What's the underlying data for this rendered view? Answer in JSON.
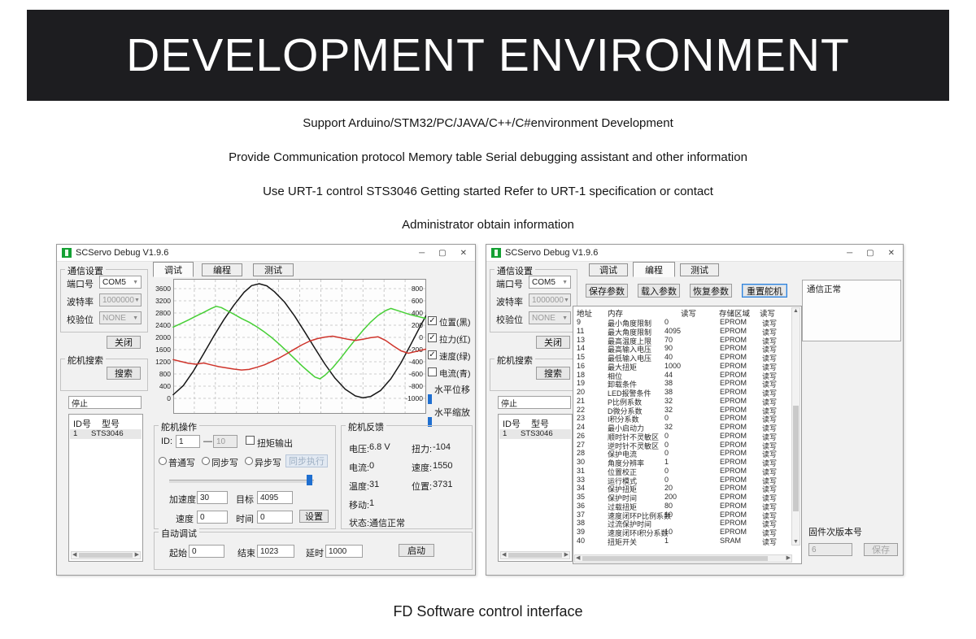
{
  "banner": {
    "title": "DEVELOPMENT ENVIRONMENT"
  },
  "intro_lines": [
    "Support Arduino/STM32/PC/JAVA/C++/C#environment Development",
    "Provide Communication protocol Memory table Serial debugging assistant and other information",
    "Use URT-1 control STS3046 Getting started Refer to URT-1 specification or contact",
    "Administrator obtain information"
  ],
  "caption": "FD Software control interface",
  "window_controls": {
    "minimize": "─",
    "maximize": "▢",
    "close": "✕"
  },
  "left_window": {
    "title": "SCServo Debug V1.9.6",
    "sidebar": {
      "comm_group": "通信设置",
      "port_label": "端口号",
      "port_value": "COM5",
      "baud_label": "波特率",
      "baud_value": "1000000",
      "parity_label": "校验位",
      "parity_value": "NONE",
      "close_button": "关闭",
      "search_group": "舵机搜索",
      "search_button": "搜索",
      "stop_field": "停止",
      "list_headers": [
        "ID号",
        "型号"
      ],
      "list_row": [
        "1",
        "STS3046"
      ]
    },
    "tabs": [
      {
        "label": "调试",
        "active": true
      },
      {
        "label": "编程",
        "active": false
      },
      {
        "label": "测试",
        "active": false
      }
    ],
    "chart": {
      "type": "line",
      "y_left": {
        "ticks": [
          3600,
          3200,
          2800,
          2400,
          2000,
          1600,
          1200,
          800,
          400,
          0
        ],
        "min": 0,
        "max": 3600
      },
      "y_right": {
        "ticks": [
          800,
          600,
          400,
          200,
          0,
          -200,
          -400,
          -600,
          -800,
          -1000
        ]
      },
      "grid_cols": 12,
      "series": [
        {
          "name": "位置",
          "color": "#161616",
          "points": [
            [
              0,
              120
            ],
            [
              0.04,
              420
            ],
            [
              0.08,
              900
            ],
            [
              0.12,
              1460
            ],
            [
              0.16,
              2040
            ],
            [
              0.2,
              2580
            ],
            [
              0.24,
              3060
            ],
            [
              0.28,
              3480
            ],
            [
              0.31,
              3700
            ],
            [
              0.34,
              3760
            ],
            [
              0.37,
              3690
            ],
            [
              0.4,
              3500
            ],
            [
              0.44,
              3160
            ],
            [
              0.48,
              2700
            ],
            [
              0.52,
              2180
            ],
            [
              0.56,
              1640
            ],
            [
              0.6,
              1120
            ],
            [
              0.64,
              660
            ],
            [
              0.68,
              300
            ],
            [
              0.72,
              80
            ],
            [
              0.75,
              20
            ],
            [
              0.78,
              60
            ],
            [
              0.82,
              260
            ],
            [
              0.86,
              640
            ],
            [
              0.9,
              1160
            ],
            [
              0.94,
              1780
            ],
            [
              0.98,
              2420
            ],
            [
              1,
              2720
            ]
          ]
        },
        {
          "name": "速度",
          "color": "#46cf35",
          "points": [
            [
              0,
              2340
            ],
            [
              0.03,
              2450
            ],
            [
              0.06,
              2570
            ],
            [
              0.09,
              2700
            ],
            [
              0.12,
              2820
            ],
            [
              0.15,
              2950
            ],
            [
              0.17,
              3020
            ],
            [
              0.19,
              2980
            ],
            [
              0.21,
              2890
            ],
            [
              0.24,
              2760
            ],
            [
              0.27,
              2620
            ],
            [
              0.3,
              2500
            ],
            [
              0.33,
              2350
            ],
            [
              0.36,
              2180
            ],
            [
              0.39,
              1990
            ],
            [
              0.42,
              1770
            ],
            [
              0.45,
              1540
            ],
            [
              0.48,
              1300
            ],
            [
              0.51,
              1060
            ],
            [
              0.54,
              840
            ],
            [
              0.56,
              700
            ],
            [
              0.58,
              640
            ],
            [
              0.6,
              760
            ],
            [
              0.63,
              1000
            ],
            [
              0.66,
              1300
            ],
            [
              0.69,
              1620
            ],
            [
              0.72,
              1930
            ],
            [
              0.75,
              2230
            ],
            [
              0.78,
              2500
            ],
            [
              0.81,
              2720
            ],
            [
              0.84,
              2880
            ],
            [
              0.86,
              2950
            ],
            [
              0.88,
              2900
            ],
            [
              0.91,
              2820
            ],
            [
              0.94,
              2740
            ],
            [
              0.97,
              2680
            ],
            [
              1,
              2620
            ]
          ]
        },
        {
          "name": "拉力",
          "color": "#cf342b",
          "points": [
            [
              0,
              1270
            ],
            [
              0.03,
              1210
            ],
            [
              0.06,
              1150
            ],
            [
              0.09,
              1120
            ],
            [
              0.12,
              1160
            ],
            [
              0.15,
              1100
            ],
            [
              0.18,
              1040
            ],
            [
              0.21,
              1000
            ],
            [
              0.24,
              960
            ],
            [
              0.27,
              930
            ],
            [
              0.3,
              950
            ],
            [
              0.33,
              1020
            ],
            [
              0.36,
              1100
            ],
            [
              0.39,
              1210
            ],
            [
              0.42,
              1330
            ],
            [
              0.45,
              1470
            ],
            [
              0.48,
              1620
            ],
            [
              0.51,
              1760
            ],
            [
              0.54,
              1880
            ],
            [
              0.57,
              1960
            ],
            [
              0.6,
              2010
            ],
            [
              0.63,
              2040
            ],
            [
              0.66,
              1990
            ],
            [
              0.69,
              1940
            ],
            [
              0.72,
              1900
            ],
            [
              0.75,
              1940
            ],
            [
              0.78,
              1990
            ],
            [
              0.81,
              2020
            ],
            [
              0.84,
              1900
            ],
            [
              0.87,
              1720
            ],
            [
              0.9,
              1560
            ],
            [
              0.93,
              1480
            ],
            [
              0.96,
              1540
            ],
            [
              1,
              1620
            ]
          ]
        }
      ]
    },
    "curve_toggles": [
      {
        "label": "位置(黑)",
        "checked": true
      },
      {
        "label": "拉力(红)",
        "checked": true
      },
      {
        "label": "速度(绿)",
        "checked": true
      },
      {
        "label": "电流(青)",
        "checked": false
      }
    ],
    "pan_zoom": {
      "pan_label": "水平位移",
      "zoom_label": "水平缩放"
    },
    "servo_op": {
      "title": "舵机操作",
      "id_label": "ID:",
      "id_value": "1",
      "id_sep": "—",
      "id_max": "10",
      "torque_checkbox": "扭矩输出",
      "write_modes": [
        "普通写",
        "同步写",
        "异步写"
      ],
      "sync_exec_button": "同步执行",
      "accel_label": "加速度",
      "accel_value": "30",
      "goal_label": "目标",
      "goal_value": "4095",
      "speed_label": "速度",
      "speed_value": "0",
      "time_label": "时间",
      "time_value": "0",
      "set_button": "设置"
    },
    "feedback": {
      "title": "舵机反馈",
      "items_left": [
        {
          "label": "电压:",
          "value": "6.8 V"
        },
        {
          "label": "电流:",
          "value": "0"
        },
        {
          "label": "温度:",
          "value": "31"
        },
        {
          "label": "移动:",
          "value": "1"
        },
        {
          "label": "状态:",
          "value": "通信正常"
        }
      ],
      "items_right": [
        {
          "label": "扭力:",
          "value": "-104"
        },
        {
          "label": "速度:",
          "value": "1550"
        },
        {
          "label": "位置:",
          "value": "3731"
        }
      ]
    },
    "auto_debug": {
      "title": "自动调试",
      "start_label": "起始",
      "start_value": "0",
      "end_label": "结束",
      "end_value": "1023",
      "delay_label": "延时",
      "delay_value": "1000",
      "run_button": "启动"
    }
  },
  "right_window": {
    "title": "SCServo Debug V1.9.6",
    "sidebar": {
      "comm_group": "通信设置",
      "port_label": "端口号",
      "port_value": "COM5",
      "baud_label": "波特率",
      "baud_value": "1000000",
      "parity_label": "校验位",
      "parity_value": "NONE",
      "close_button": "关闭",
      "search_group": "舵机搜索",
      "search_button": "搜索",
      "stop_field": "停止",
      "list_headers": [
        "ID号",
        "型号"
      ],
      "list_row": [
        "1",
        "STS3046"
      ]
    },
    "tabs": [
      {
        "label": "调试",
        "active": false
      },
      {
        "label": "编程",
        "active": true
      },
      {
        "label": "测试",
        "active": false
      }
    ],
    "param_buttons": [
      "保存参数",
      "载入参数",
      "恢复参数",
      "重置舵机"
    ],
    "status_box": "通信正常",
    "memory_table": {
      "headers": [
        "地址",
        "内存",
        "读写",
        "存储区域",
        "读写"
      ],
      "rows": [
        [
          "9",
          "最小角度限制",
          "0",
          "EPROM",
          "读写"
        ],
        [
          "11",
          "最大角度限制",
          "4095",
          "EPROM",
          "读写"
        ],
        [
          "13",
          "最高温度上限",
          "70",
          "EPROM",
          "读写"
        ],
        [
          "14",
          "最高输入电压",
          "90",
          "EPROM",
          "读写"
        ],
        [
          "15",
          "最低输入电压",
          "40",
          "EPROM",
          "读写"
        ],
        [
          "16",
          "最大扭矩",
          "1000",
          "EPROM",
          "读写"
        ],
        [
          "18",
          "相位",
          "44",
          "EPROM",
          "读写"
        ],
        [
          "19",
          "卸载条件",
          "38",
          "EPROM",
          "读写"
        ],
        [
          "20",
          "LED报警条件",
          "38",
          "EPROM",
          "读写"
        ],
        [
          "21",
          "P比例系数",
          "32",
          "EPROM",
          "读写"
        ],
        [
          "22",
          "D微分系数",
          "32",
          "EPROM",
          "读写"
        ],
        [
          "23",
          "I积分系数",
          "0",
          "EPROM",
          "读写"
        ],
        [
          "24",
          "最小启动力",
          "32",
          "EPROM",
          "读写"
        ],
        [
          "26",
          "顺时针不灵敏区",
          "0",
          "EPROM",
          "读写"
        ],
        [
          "27",
          "逆时针不灵敏区",
          "0",
          "EPROM",
          "读写"
        ],
        [
          "28",
          "保护电流",
          "0",
          "EPROM",
          "读写"
        ],
        [
          "30",
          "角度分辨率",
          "1",
          "EPROM",
          "读写"
        ],
        [
          "31",
          "位置校正",
          "0",
          "EPROM",
          "读写"
        ],
        [
          "33",
          "运行模式",
          "0",
          "EPROM",
          "读写"
        ],
        [
          "34",
          "保护扭矩",
          "20",
          "EPROM",
          "读写"
        ],
        [
          "35",
          "保护时间",
          "200",
          "EPROM",
          "读写"
        ],
        [
          "36",
          "过载扭矩",
          "80",
          "EPROM",
          "读写"
        ],
        [
          "37",
          "速度闭环P比例系数",
          "10",
          "EPROM",
          "读写"
        ],
        [
          "38",
          "过流保护时间",
          "",
          "EPROM",
          "读写"
        ],
        [
          "39",
          "速度闭环I积分系数",
          "10",
          "EPROM",
          "读写"
        ],
        [
          "40",
          "扭矩开关",
          "1",
          "SRAM",
          "读写"
        ]
      ]
    },
    "firmware": {
      "label": "固件次版本号",
      "value": "6",
      "save_button": "保存"
    }
  }
}
